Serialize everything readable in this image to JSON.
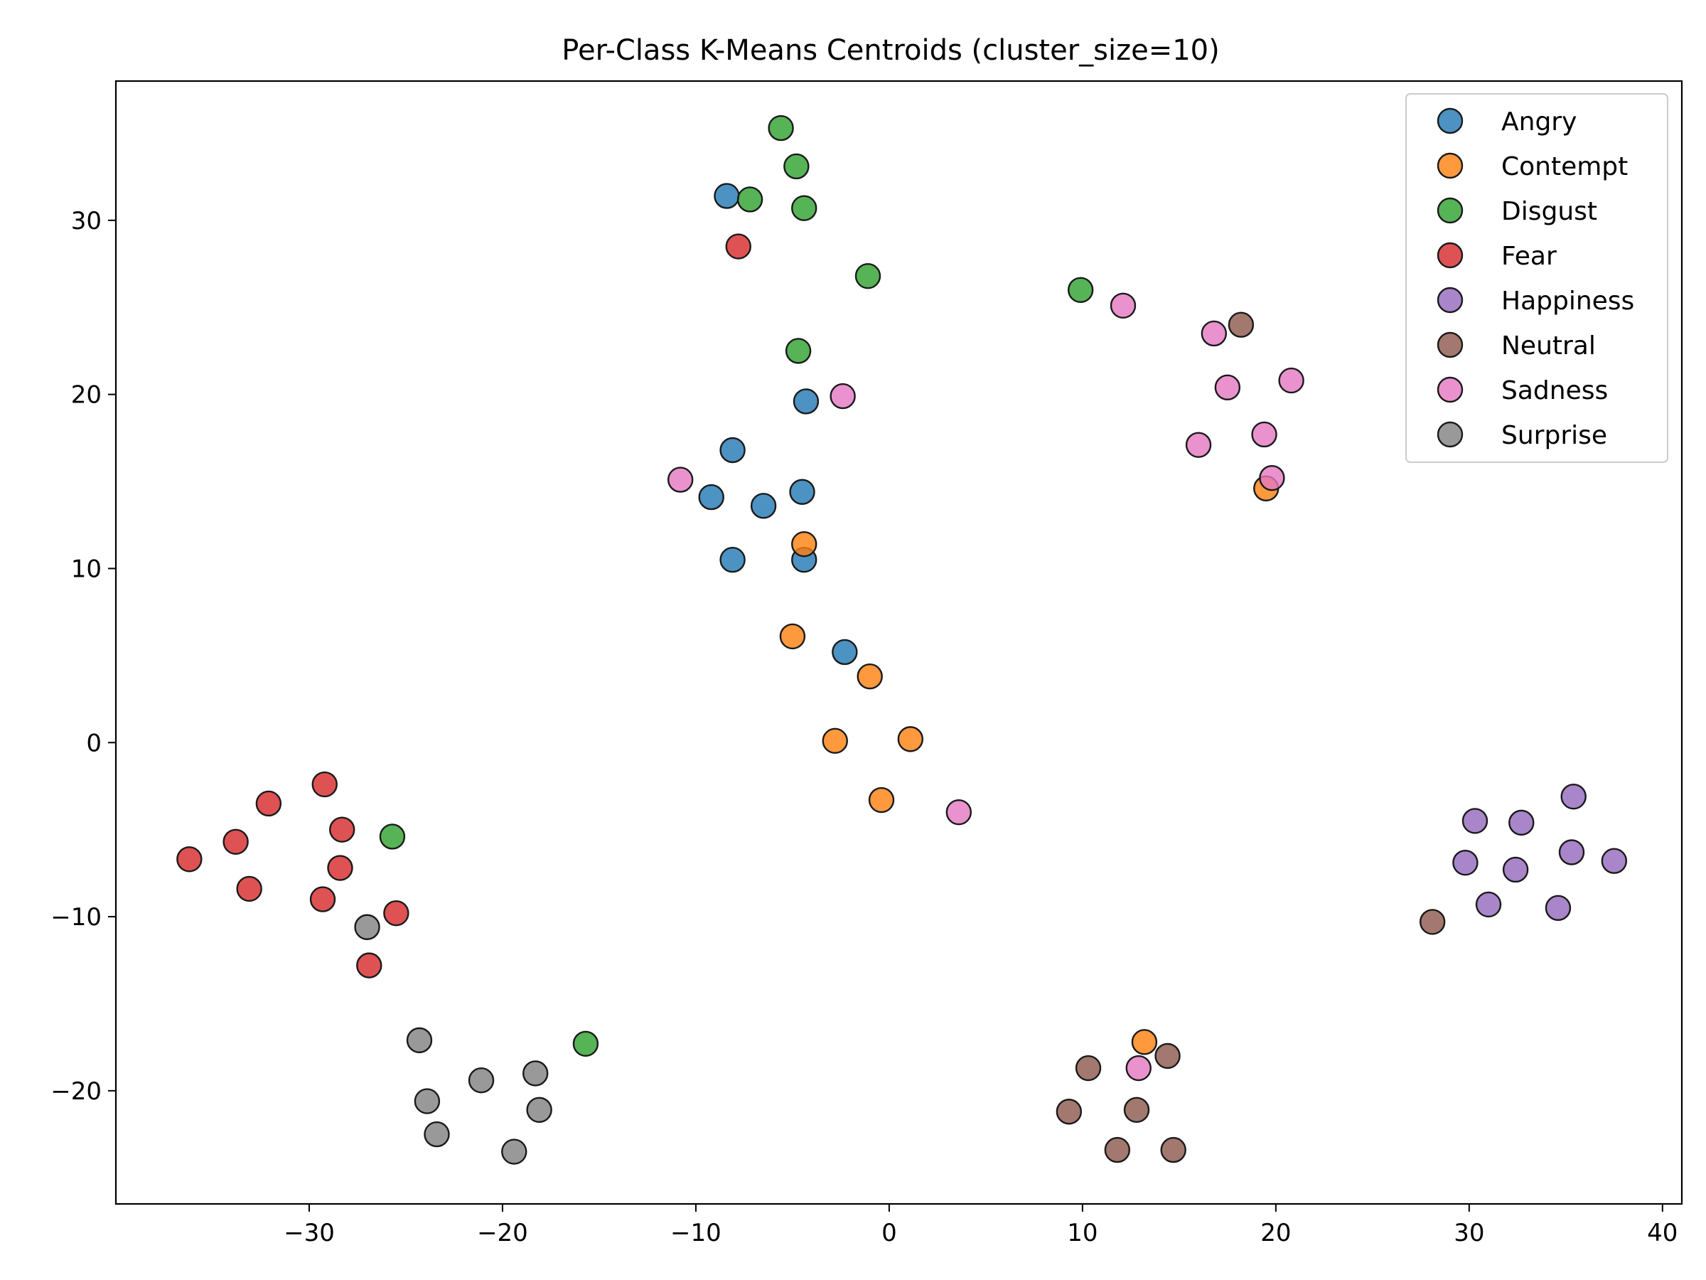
{
  "chart_data": {
    "type": "scatter",
    "title": "Per-Class K-Means Centroids (cluster_size=10)",
    "xlabel": "",
    "ylabel": "",
    "xlim": [
      -40,
      41
    ],
    "ylim": [
      -26.5,
      38
    ],
    "xticks": [
      -30,
      -20,
      -10,
      0,
      10,
      20,
      30,
      40
    ],
    "yticks": [
      -20,
      -10,
      0,
      10,
      20,
      30
    ],
    "grid": false,
    "legend": "top-right",
    "marker_edge_color": "#1a1a1a",
    "series": [
      {
        "name": "Angry",
        "color": "#1f77b4",
        "points": [
          [
            -8.4,
            31.4
          ],
          [
            -4.3,
            19.6
          ],
          [
            -8.1,
            16.8
          ],
          [
            -9.2,
            14.1
          ],
          [
            -6.5,
            13.6
          ],
          [
            -4.5,
            14.4
          ],
          [
            -8.1,
            10.5
          ],
          [
            -4.4,
            10.5
          ],
          [
            -2.3,
            5.2
          ]
        ]
      },
      {
        "name": "Contempt",
        "color": "#ff7f0e",
        "points": [
          [
            19.5,
            14.6
          ],
          [
            -4.4,
            11.4
          ],
          [
            -5.0,
            6.1
          ],
          [
            -1.0,
            3.8
          ],
          [
            -2.8,
            0.1
          ],
          [
            1.1,
            0.2
          ],
          [
            -0.4,
            -3.3
          ],
          [
            13.2,
            -17.2
          ]
        ]
      },
      {
        "name": "Disgust",
        "color": "#2ca02c",
        "points": [
          [
            -5.6,
            35.3
          ],
          [
            -4.8,
            33.1
          ],
          [
            -7.2,
            31.2
          ],
          [
            -4.4,
            30.7
          ],
          [
            -1.1,
            26.8
          ],
          [
            9.9,
            26.0
          ],
          [
            -4.7,
            22.5
          ],
          [
            -25.7,
            -5.4
          ],
          [
            -15.7,
            -17.3
          ]
        ]
      },
      {
        "name": "Fear",
        "color": "#d62728",
        "points": [
          [
            -7.8,
            28.5
          ],
          [
            -29.2,
            -2.4
          ],
          [
            -32.1,
            -3.5
          ],
          [
            -28.3,
            -5.0
          ],
          [
            -33.8,
            -5.7
          ],
          [
            -36.2,
            -6.7
          ],
          [
            -28.4,
            -7.2
          ],
          [
            -33.1,
            -8.4
          ],
          [
            -29.3,
            -9.0
          ],
          [
            -25.5,
            -9.8
          ],
          [
            -26.9,
            -12.8
          ]
        ]
      },
      {
        "name": "Happiness",
        "color": "#9467bd",
        "points": [
          [
            30.3,
            -4.5
          ],
          [
            32.7,
            -4.6
          ],
          [
            35.4,
            -3.1
          ],
          [
            35.3,
            -6.3
          ],
          [
            37.5,
            -6.8
          ],
          [
            29.8,
            -6.9
          ],
          [
            32.4,
            -7.3
          ],
          [
            31.0,
            -9.3
          ],
          [
            34.6,
            -9.5
          ]
        ]
      },
      {
        "name": "Neutral",
        "color": "#8c564b",
        "points": [
          [
            18.2,
            24.0
          ],
          [
            28.1,
            -10.3
          ],
          [
            10.3,
            -18.7
          ],
          [
            14.4,
            -18.0
          ],
          [
            9.3,
            -21.2
          ],
          [
            12.8,
            -21.1
          ],
          [
            11.8,
            -23.4
          ],
          [
            14.7,
            -23.4
          ]
        ]
      },
      {
        "name": "Sadness",
        "color": "#e377c2",
        "points": [
          [
            12.1,
            25.1
          ],
          [
            16.8,
            23.5
          ],
          [
            17.5,
            20.4
          ],
          [
            20.8,
            20.8
          ],
          [
            -2.4,
            19.9
          ],
          [
            19.4,
            17.7
          ],
          [
            16.0,
            17.1
          ],
          [
            19.8,
            15.2
          ],
          [
            -10.8,
            15.1
          ],
          [
            3.6,
            -4.0
          ],
          [
            12.9,
            -18.7
          ]
        ]
      },
      {
        "name": "Surprise",
        "color": "#7f7f7f",
        "points": [
          [
            -27.0,
            -10.6
          ],
          [
            -24.3,
            -17.1
          ],
          [
            -21.1,
            -19.4
          ],
          [
            -18.3,
            -19.0
          ],
          [
            -23.9,
            -20.6
          ],
          [
            -18.1,
            -21.1
          ],
          [
            -23.4,
            -22.5
          ],
          [
            -19.4,
            -23.5
          ]
        ]
      }
    ]
  }
}
